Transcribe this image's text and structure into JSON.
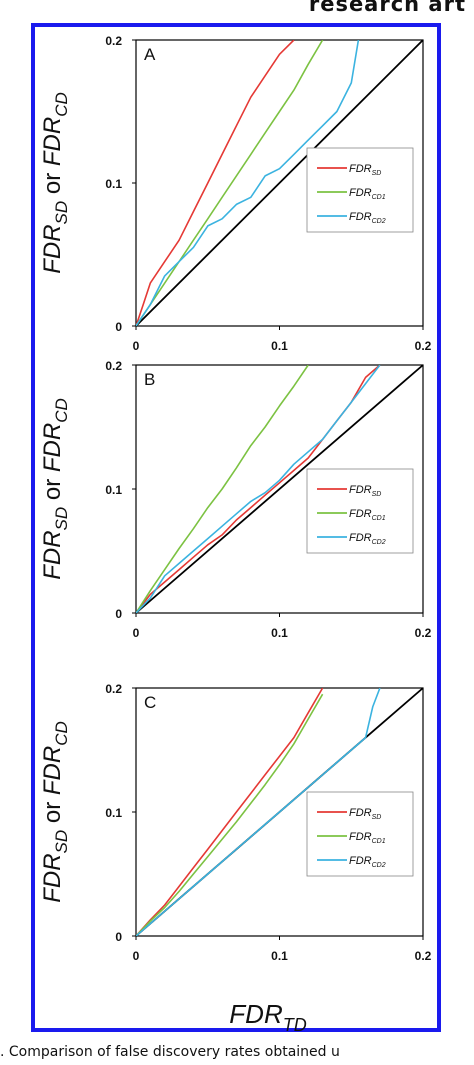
{
  "header": {
    "text": "research art"
  },
  "caption": {
    "text": ". Comparison of false discovery rates obtained u"
  },
  "colors": {
    "frame": "#1a1aee",
    "sd": "#e53935",
    "cd1": "#7cc242",
    "cd2": "#3bb3e0",
    "diagonal": "#000000"
  },
  "chart_data": [
    {
      "type": "line",
      "panel_label": "A",
      "xlabel_main": "FDR",
      "xlabel_sub": "TD",
      "ylabel_parts": [
        "FDR",
        "SD",
        " or FDR",
        "CD"
      ],
      "xlim": [
        0,
        0.2
      ],
      "ylim": [
        0,
        0.2
      ],
      "x_ticks": [
        "0",
        "0.1",
        "0.2"
      ],
      "y_ticks": [
        "0",
        "0.1",
        "0.2"
      ],
      "legend_position": "right",
      "series": [
        {
          "name": "FDR",
          "name_sub": "SD",
          "color": "#e53935",
          "x": [
            0,
            0.005,
            0.01,
            0.02,
            0.03,
            0.04,
            0.05,
            0.06,
            0.07,
            0.08,
            0.09,
            0.1,
            0.11
          ],
          "y": [
            0,
            0.015,
            0.03,
            0.045,
            0.06,
            0.08,
            0.1,
            0.12,
            0.14,
            0.16,
            0.175,
            0.19,
            0.2
          ]
        },
        {
          "name": "FDR",
          "name_sub": "CD1",
          "color": "#7cc242",
          "x": [
            0,
            0.01,
            0.02,
            0.03,
            0.04,
            0.05,
            0.06,
            0.07,
            0.08,
            0.09,
            0.1,
            0.11,
            0.12,
            0.13
          ],
          "y": [
            0,
            0.015,
            0.03,
            0.045,
            0.06,
            0.075,
            0.09,
            0.105,
            0.12,
            0.135,
            0.15,
            0.165,
            0.183,
            0.2
          ]
        },
        {
          "name": "FDR",
          "name_sub": "CD2",
          "color": "#3bb3e0",
          "x": [
            0,
            0.01,
            0.02,
            0.03,
            0.04,
            0.05,
            0.06,
            0.07,
            0.08,
            0.09,
            0.1,
            0.11,
            0.12,
            0.13,
            0.14,
            0.15,
            0.155
          ],
          "y": [
            0,
            0.015,
            0.035,
            0.045,
            0.055,
            0.07,
            0.075,
            0.085,
            0.09,
            0.105,
            0.11,
            0.12,
            0.13,
            0.14,
            0.15,
            0.17,
            0.2
          ]
        }
      ]
    },
    {
      "type": "line",
      "panel_label": "B",
      "xlabel_main": "FDR",
      "xlabel_sub": "TD",
      "ylabel_parts": [
        "FDR",
        "SD",
        " or FDR",
        "CD"
      ],
      "xlim": [
        0,
        0.2
      ],
      "ylim": [
        0,
        0.2
      ],
      "x_ticks": [
        "0",
        "0.1",
        "0.2"
      ],
      "y_ticks": [
        "0",
        "0.1",
        "0.2"
      ],
      "legend_position": "right",
      "series": [
        {
          "name": "FDR",
          "name_sub": "SD",
          "color": "#e53935",
          "x": [
            0,
            0.01,
            0.02,
            0.03,
            0.04,
            0.05,
            0.06,
            0.07,
            0.08,
            0.09,
            0.1,
            0.11,
            0.12,
            0.13,
            0.14,
            0.15,
            0.16,
            0.17
          ],
          "y": [
            0,
            0.015,
            0.025,
            0.035,
            0.045,
            0.055,
            0.063,
            0.075,
            0.085,
            0.095,
            0.105,
            0.115,
            0.125,
            0.14,
            0.155,
            0.17,
            0.19,
            0.2
          ]
        },
        {
          "name": "FDR",
          "name_sub": "CD1",
          "color": "#7cc242",
          "x": [
            0,
            0.01,
            0.02,
            0.03,
            0.04,
            0.05,
            0.06,
            0.07,
            0.08,
            0.09,
            0.1,
            0.11,
            0.12
          ],
          "y": [
            0,
            0.018,
            0.035,
            0.052,
            0.068,
            0.085,
            0.1,
            0.117,
            0.135,
            0.15,
            0.167,
            0.183,
            0.2
          ]
        },
        {
          "name": "FDR",
          "name_sub": "CD2",
          "color": "#3bb3e0",
          "x": [
            0,
            0.01,
            0.02,
            0.03,
            0.04,
            0.05,
            0.06,
            0.07,
            0.08,
            0.09,
            0.1,
            0.11,
            0.12,
            0.13,
            0.14,
            0.15,
            0.16,
            0.17
          ],
          "y": [
            0,
            0.012,
            0.03,
            0.04,
            0.05,
            0.06,
            0.07,
            0.08,
            0.09,
            0.097,
            0.107,
            0.12,
            0.13,
            0.14,
            0.155,
            0.17,
            0.185,
            0.2
          ]
        }
      ]
    },
    {
      "type": "line",
      "panel_label": "C",
      "xlabel_main": "FDR",
      "xlabel_sub": "TD",
      "ylabel_parts": [
        "FDR",
        "SD",
        " or FDR",
        "CD"
      ],
      "xlim": [
        0,
        0.2
      ],
      "ylim": [
        0,
        0.2
      ],
      "x_ticks": [
        "0",
        "0.1",
        "0.2"
      ],
      "y_ticks": [
        "0",
        "0.1",
        "0.2"
      ],
      "legend_position": "right",
      "series": [
        {
          "name": "FDR",
          "name_sub": "SD",
          "color": "#e53935",
          "x": [
            0,
            0.01,
            0.02,
            0.03,
            0.04,
            0.05,
            0.06,
            0.07,
            0.08,
            0.09,
            0.1,
            0.11,
            0.12,
            0.13
          ],
          "y": [
            0,
            0.013,
            0.025,
            0.04,
            0.055,
            0.07,
            0.085,
            0.1,
            0.115,
            0.13,
            0.145,
            0.16,
            0.18,
            0.2
          ]
        },
        {
          "name": "FDR",
          "name_sub": "CD1",
          "color": "#7cc242",
          "x": [
            0,
            0.01,
            0.02,
            0.03,
            0.04,
            0.05,
            0.06,
            0.07,
            0.08,
            0.09,
            0.1,
            0.11,
            0.12,
            0.13
          ],
          "y": [
            0,
            0.012,
            0.023,
            0.036,
            0.05,
            0.064,
            0.078,
            0.092,
            0.107,
            0.122,
            0.138,
            0.155,
            0.175,
            0.195
          ]
        },
        {
          "name": "FDR",
          "name_sub": "CD2",
          "color": "#3bb3e0",
          "x": [
            0,
            0.01,
            0.02,
            0.03,
            0.04,
            0.05,
            0.06,
            0.07,
            0.08,
            0.09,
            0.1,
            0.11,
            0.12,
            0.13,
            0.14,
            0.15,
            0.16,
            0.165,
            0.17
          ],
          "y": [
            0,
            0.01,
            0.02,
            0.03,
            0.04,
            0.05,
            0.06,
            0.07,
            0.08,
            0.09,
            0.1,
            0.11,
            0.12,
            0.13,
            0.14,
            0.15,
            0.16,
            0.185,
            0.2
          ]
        }
      ]
    }
  ]
}
